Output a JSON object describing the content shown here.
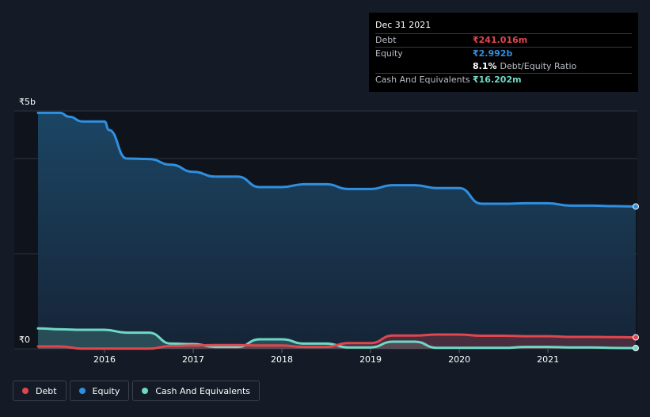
{
  "chart_data": {
    "type": "line",
    "y_max_label": "₹5b",
    "y_min_label": "₹0",
    "ylim": [
      0,
      5000
    ],
    "xlim": [
      2015.25,
      2021.99
    ],
    "x_ticks": [
      {
        "value": 2016,
        "label": "2016"
      },
      {
        "value": 2017,
        "label": "2017"
      },
      {
        "value": 2018,
        "label": "2018"
      },
      {
        "value": 2019,
        "label": "2019"
      },
      {
        "value": 2020,
        "label": "2020"
      },
      {
        "value": 2021,
        "label": "2021"
      }
    ],
    "grid": true,
    "legend_position": "bottom-left",
    "series": [
      {
        "name": "Equity",
        "color": "#2f8fe0",
        "x": [
          2015.25,
          2015.5,
          2015.6,
          2015.75,
          2016.0,
          2016.05,
          2016.25,
          2016.5,
          2016.75,
          2017.0,
          2017.25,
          2017.5,
          2017.75,
          2018.0,
          2018.25,
          2018.5,
          2018.75,
          2019.0,
          2019.25,
          2019.5,
          2019.75,
          2020.0,
          2020.25,
          2020.5,
          2020.75,
          2021.0,
          2021.25,
          2021.5,
          2021.75,
          2021.99
        ],
        "values": [
          4960,
          4960,
          4880,
          4780,
          4780,
          4600,
          4000,
          3990,
          3870,
          3720,
          3620,
          3620,
          3400,
          3400,
          3460,
          3460,
          3360,
          3360,
          3440,
          3440,
          3380,
          3380,
          3050,
          3050,
          3060,
          3060,
          3010,
          3010,
          3000,
          2992
        ]
      },
      {
        "name": "Debt",
        "color": "#e0464e",
        "x": [
          2015.25,
          2015.5,
          2015.75,
          2016.0,
          2016.5,
          2016.75,
          2017.0,
          2017.25,
          2017.5,
          2017.75,
          2018.0,
          2018.25,
          2018.5,
          2018.75,
          2019.0,
          2019.25,
          2019.5,
          2019.75,
          2020.0,
          2020.25,
          2020.5,
          2020.75,
          2021.0,
          2021.25,
          2021.5,
          2021.75,
          2021.99
        ],
        "values": [
          50,
          50,
          5,
          5,
          5,
          60,
          70,
          80,
          80,
          70,
          70,
          40,
          40,
          120,
          120,
          280,
          280,
          300,
          300,
          275,
          275,
          265,
          265,
          250,
          250,
          245,
          241
        ]
      },
      {
        "name": "Cash And Equivalents",
        "color": "#6dd9c5",
        "x": [
          2015.25,
          2015.5,
          2015.75,
          2016.0,
          2016.25,
          2016.5,
          2016.75,
          2017.0,
          2017.25,
          2017.5,
          2017.75,
          2018.0,
          2018.25,
          2018.5,
          2018.75,
          2019.0,
          2019.25,
          2019.5,
          2019.75,
          2020.0,
          2020.25,
          2020.5,
          2020.75,
          2021.0,
          2021.25,
          2021.5,
          2021.75,
          2021.99
        ],
        "values": [
          430,
          410,
          400,
          400,
          340,
          340,
          110,
          100,
          40,
          40,
          200,
          200,
          110,
          110,
          30,
          30,
          150,
          150,
          20,
          20,
          20,
          20,
          40,
          40,
          30,
          30,
          18,
          16
        ]
      }
    ]
  },
  "tooltip": {
    "date": "Dec 31 2021",
    "rows": [
      {
        "label": "Debt",
        "value": "₹241.016m",
        "color": "#e0464e"
      },
      {
        "label": "Equity",
        "value": "₹2.992b",
        "color": "#2f8fe0"
      },
      {
        "label": "",
        "value": "8.1%",
        "suffix": "Debt/Equity Ratio",
        "color": "#ffffff"
      },
      {
        "label": "Cash And Equivalents",
        "value": "₹16.202m",
        "color": "#6dd9c5"
      }
    ]
  },
  "legend": [
    {
      "label": "Debt",
      "color": "#e0464e"
    },
    {
      "label": "Equity",
      "color": "#2f8fe0"
    },
    {
      "label": "Cash And Equivalents",
      "color": "#6dd9c5"
    }
  ]
}
